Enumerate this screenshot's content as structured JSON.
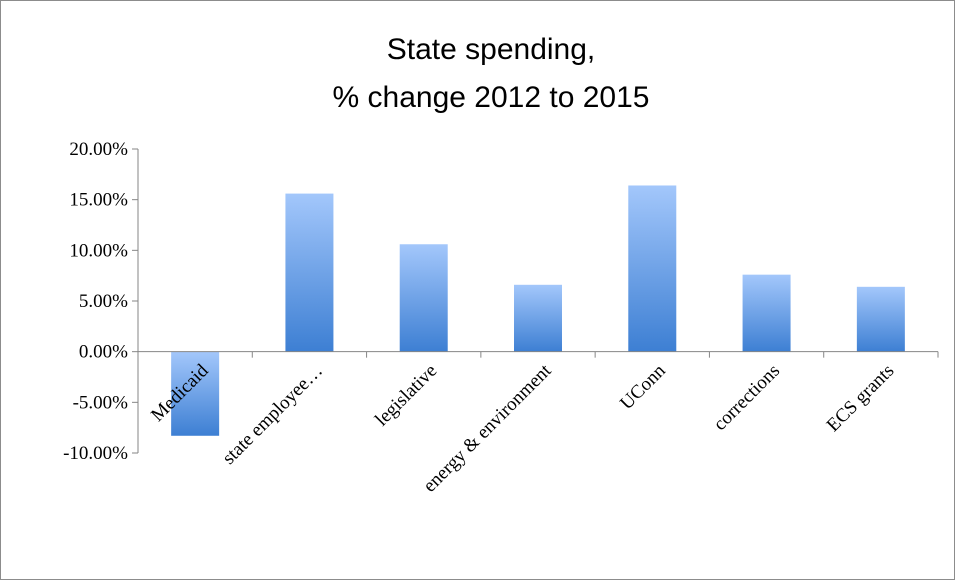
{
  "chart_data": {
    "type": "bar",
    "title_lines": [
      "State spending,",
      "% change 2012 to 2015"
    ],
    "xlabel": "",
    "ylabel": "",
    "categories": [
      "Medicaid",
      "state employee…",
      "legislative",
      "energy & environment",
      "UConn",
      "corrections",
      "ECS grants"
    ],
    "values": [
      -8.3,
      15.6,
      10.6,
      6.6,
      16.4,
      7.6,
      6.4
    ],
    "ylim": [
      -10,
      20
    ],
    "yticks": [
      -10,
      -5,
      0,
      5,
      10,
      15,
      20
    ],
    "ytick_labels": [
      "-10.00%",
      "-5.00%",
      "0.00%",
      "5.00%",
      "10.00%",
      "15.00%",
      "20.00%"
    ],
    "grid": false,
    "legend": "none",
    "colors": {
      "bar_top": "#a3c7fb",
      "bar_bottom": "#3d7fd3",
      "axis": "#868686"
    }
  }
}
